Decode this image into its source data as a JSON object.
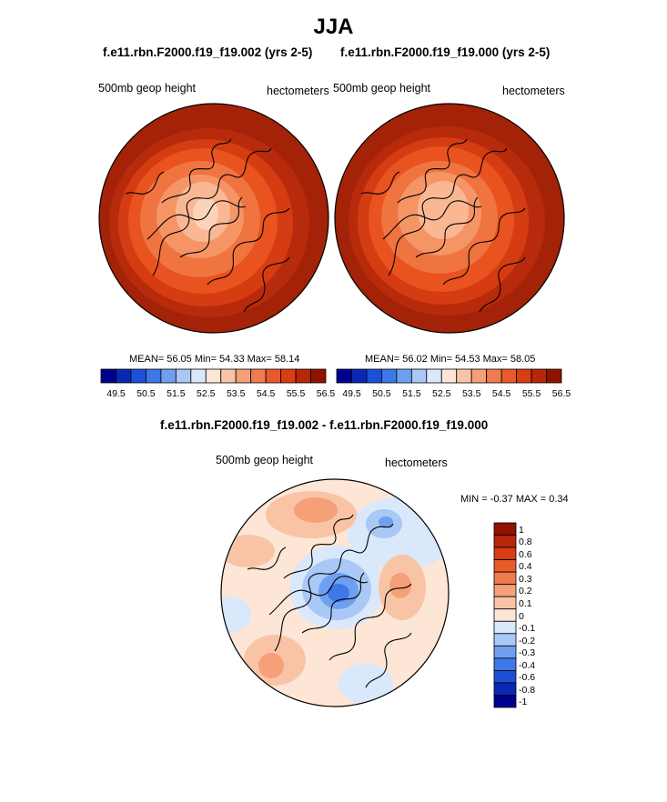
{
  "figure_title": "JJA",
  "panels": [
    {
      "case_title": "f.e11.rbn.F2000.f19_f19.002 (yrs 2-5)",
      "variable_label": "500mb geop height",
      "units_label": "hectometers",
      "stats": "MEAN=  56.05  Min=  54.33  Max=  58.14",
      "min": 54.33,
      "max": 58.14,
      "mean": 56.05
    },
    {
      "case_title": "f.e11.rbn.F2000.f19_f19.000 (yrs 2-5)",
      "variable_label": "500mb geop height",
      "units_label": "hectometers",
      "stats": "MEAN=  56.02  Min=  54.53  Max=  58.05",
      "min": 54.53,
      "max": 58.05,
      "mean": 56.02
    }
  ],
  "colorbar_main": {
    "colors": [
      "#00008f",
      "#0a28b4",
      "#1e4fd8",
      "#3c78e8",
      "#6fa0f0",
      "#a9c8f5",
      "#d9e8fb",
      "#fde6d6",
      "#f9c4a6",
      "#f5a079",
      "#f07b4f",
      "#e85a2a",
      "#d83d14",
      "#b82608",
      "#8f1200"
    ],
    "tick_labels": [
      "49.5",
      "50.5",
      "51.5",
      "52.5",
      "53.5",
      "54.5",
      "55.5",
      "56.5"
    ]
  },
  "difference": {
    "title": "f.e11.rbn.F2000.f19_f19.002 - f.e11.rbn.F2000.f19_f19.000",
    "variable_label": "500mb geop height",
    "units_label": "hectometers",
    "minmax": "MIN =  -0.37 MAX =   0.34",
    "min": -0.37,
    "max": 0.34
  },
  "colorbar_diff": {
    "colors": [
      "#8f1200",
      "#b82608",
      "#d83d14",
      "#e85a2a",
      "#f07b4f",
      "#f5a079",
      "#f9c4a6",
      "#fde6d6",
      "#d9e8fb",
      "#a9c8f5",
      "#6fa0f0",
      "#3c78e8",
      "#1e4fd8",
      "#0a28b4",
      "#00008f"
    ],
    "tick_labels": [
      "1",
      "0.8",
      "0.6",
      "0.4",
      "0.3",
      "0.2",
      "0.1",
      "0",
      "-0.1",
      "-0.2",
      "-0.3",
      "-0.4",
      "-0.6",
      "-0.8",
      "-1"
    ]
  }
}
